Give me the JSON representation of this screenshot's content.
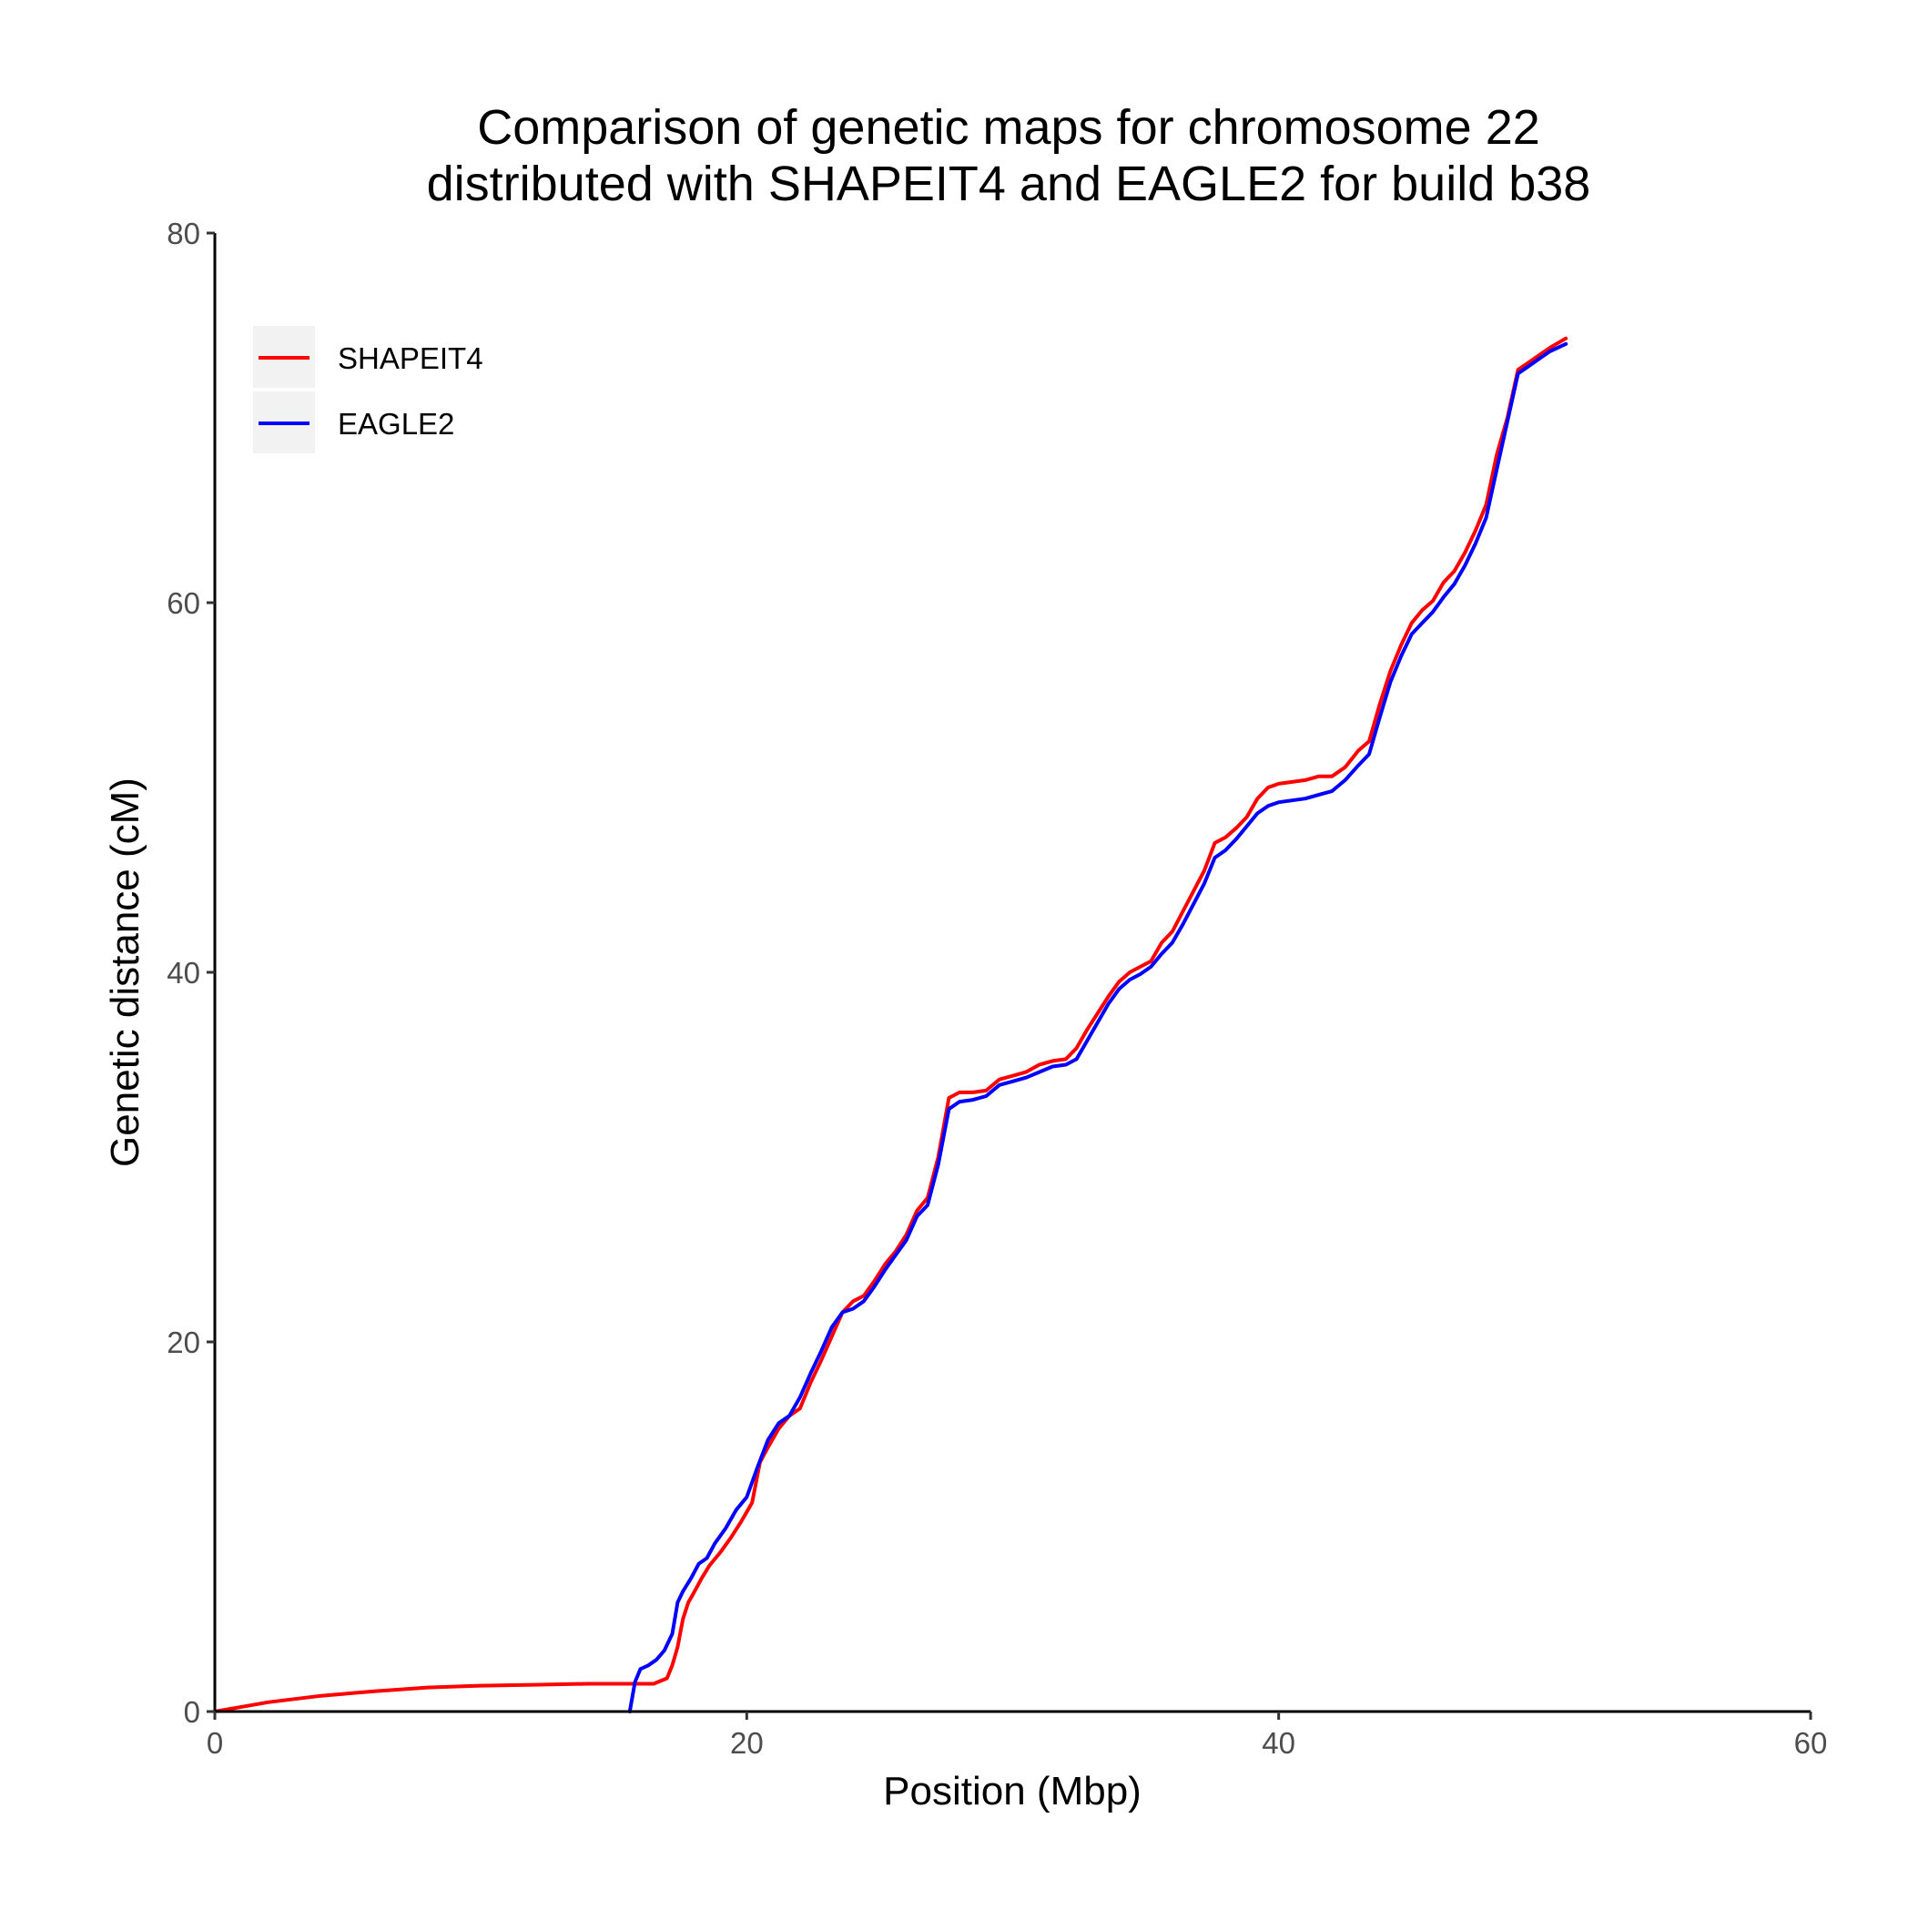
{
  "chart_data": {
    "type": "line",
    "title": "Comparison of genetic maps for chromosome 22\ndistributed with SHAPEIT4 and EAGLE2 for build b38",
    "title_lines": [
      "Comparison of genetic maps for chromosome 22",
      "distributed with SHAPEIT4 and EAGLE2 for build b38"
    ],
    "xlabel": "Position (Mbp)",
    "ylabel": "Genetic distance (cM)",
    "xlim": [
      0,
      60
    ],
    "ylim": [
      0,
      80
    ],
    "x_ticks": [
      0,
      20,
      40,
      60
    ],
    "y_ticks": [
      0,
      20,
      40,
      60,
      80
    ],
    "x_tick_labels": [
      "0",
      "20",
      "40",
      "60"
    ],
    "y_tick_labels": [
      "0",
      "20",
      "40",
      "60",
      "80"
    ],
    "grid": false,
    "legend_position": "top-left",
    "series": [
      {
        "name": "SHAPEIT4",
        "color": "#ff0000",
        "x": [
          0,
          2,
          4,
          6,
          8,
          10,
          12,
          14,
          16,
          16.5,
          17,
          17.2,
          17.4,
          17.6,
          17.8,
          18.0,
          18.3,
          18.6,
          19.0,
          19.4,
          19.8,
          20.2,
          20.5,
          20.8,
          21.2,
          21.6,
          22.0,
          22.4,
          22.8,
          23.2,
          23.6,
          24.0,
          24.4,
          24.8,
          25.2,
          25.6,
          26.0,
          26.4,
          26.8,
          27.2,
          27.6,
          28.0,
          28.5,
          29.0,
          29.5,
          30.0,
          30.5,
          31.0,
          31.5,
          32.0,
          32.4,
          32.8,
          33.2,
          33.6,
          34.0,
          34.4,
          34.8,
          35.2,
          35.6,
          36.0,
          36.4,
          36.8,
          37.2,
          37.6,
          38.0,
          38.4,
          38.8,
          39.2,
          39.6,
          40.0,
          40.5,
          41.0,
          41.5,
          42.0,
          42.5,
          43.0,
          43.4,
          43.8,
          44.2,
          44.6,
          45.0,
          45.4,
          45.8,
          46.2,
          46.6,
          47.0,
          47.4,
          47.8,
          48.2,
          48.6,
          49.0,
          49.4,
          49.8,
          50.2,
          50.8
        ],
        "values": [
          0,
          0.5,
          0.85,
          1.1,
          1.3,
          1.4,
          1.45,
          1.5,
          1.5,
          1.5,
          1.8,
          2.5,
          3.5,
          5.0,
          5.9,
          6.4,
          7.2,
          7.9,
          8.6,
          9.4,
          10.3,
          11.3,
          13.5,
          14.3,
          15.3,
          16.0,
          16.4,
          17.8,
          19.0,
          20.3,
          21.6,
          22.2,
          22.5,
          23.3,
          24.2,
          24.9,
          25.8,
          27.1,
          27.8,
          30.0,
          33.2,
          33.5,
          33.5,
          33.6,
          34.2,
          34.4,
          34.6,
          35.0,
          35.2,
          35.3,
          35.9,
          36.9,
          37.8,
          38.7,
          39.5,
          40.0,
          40.3,
          40.6,
          41.6,
          42.2,
          43.3,
          44.4,
          45.5,
          47.0,
          47.3,
          47.8,
          48.4,
          49.4,
          50.0,
          50.2,
          50.3,
          50.4,
          50.6,
          50.6,
          51.1,
          52.0,
          52.5,
          54.5,
          56.3,
          57.7,
          58.9,
          59.6,
          60.1,
          61.1,
          61.7,
          62.7,
          63.9,
          65.3,
          68.0,
          70.0,
          72.6,
          73.0,
          73.4,
          73.8,
          74.3
        ]
      },
      {
        "name": "EAGLE2",
        "color": "#0000ff",
        "x": [
          15.6,
          15.8,
          16.0,
          16.3,
          16.6,
          16.9,
          17.2,
          17.4,
          17.6,
          17.9,
          18.2,
          18.5,
          18.8,
          19.2,
          19.6,
          20.0,
          20.4,
          20.8,
          21.2,
          21.6,
          22.0,
          22.4,
          22.8,
          23.2,
          23.6,
          24.0,
          24.4,
          24.8,
          25.2,
          25.6,
          26.0,
          26.4,
          26.8,
          27.2,
          27.6,
          28.0,
          28.5,
          29.0,
          29.5,
          30.0,
          30.5,
          31.0,
          31.5,
          32.0,
          32.4,
          32.8,
          33.2,
          33.6,
          34.0,
          34.4,
          34.8,
          35.2,
          35.6,
          36.0,
          36.4,
          36.8,
          37.2,
          37.6,
          38.0,
          38.4,
          38.8,
          39.2,
          39.6,
          40.0,
          40.5,
          41.0,
          41.5,
          42.0,
          42.5,
          43.0,
          43.4,
          43.8,
          44.2,
          44.6,
          45.0,
          45.4,
          45.8,
          46.2,
          46.6,
          47.0,
          47.4,
          47.8,
          48.2,
          48.6,
          49.0,
          49.4,
          49.8,
          50.2,
          50.8
        ],
        "values": [
          0,
          1.6,
          2.3,
          2.5,
          2.8,
          3.3,
          4.2,
          5.9,
          6.5,
          7.2,
          8.0,
          8.3,
          9.1,
          9.9,
          10.9,
          11.6,
          13.2,
          14.7,
          15.6,
          16.0,
          17.0,
          18.3,
          19.5,
          20.8,
          21.6,
          21.8,
          22.2,
          23.0,
          23.9,
          24.7,
          25.5,
          26.8,
          27.4,
          29.6,
          32.6,
          33.0,
          33.1,
          33.3,
          33.9,
          34.1,
          34.3,
          34.6,
          34.9,
          35.0,
          35.3,
          36.3,
          37.3,
          38.3,
          39.1,
          39.6,
          39.9,
          40.3,
          41.0,
          41.6,
          42.6,
          43.7,
          44.8,
          46.2,
          46.6,
          47.2,
          47.9,
          48.6,
          49.0,
          49.2,
          49.3,
          49.4,
          49.6,
          49.8,
          50.4,
          51.2,
          51.8,
          53.8,
          55.7,
          57.1,
          58.3,
          58.9,
          59.5,
          60.3,
          61.0,
          62.0,
          63.2,
          64.6,
          67.2,
          69.8,
          72.4,
          72.8,
          73.2,
          73.6,
          74.0
        ]
      }
    ]
  },
  "legend": {
    "items": [
      {
        "label": "SHAPEIT4",
        "color": "#ff0000"
      },
      {
        "label": "EAGLE2",
        "color": "#0000ff"
      }
    ]
  }
}
